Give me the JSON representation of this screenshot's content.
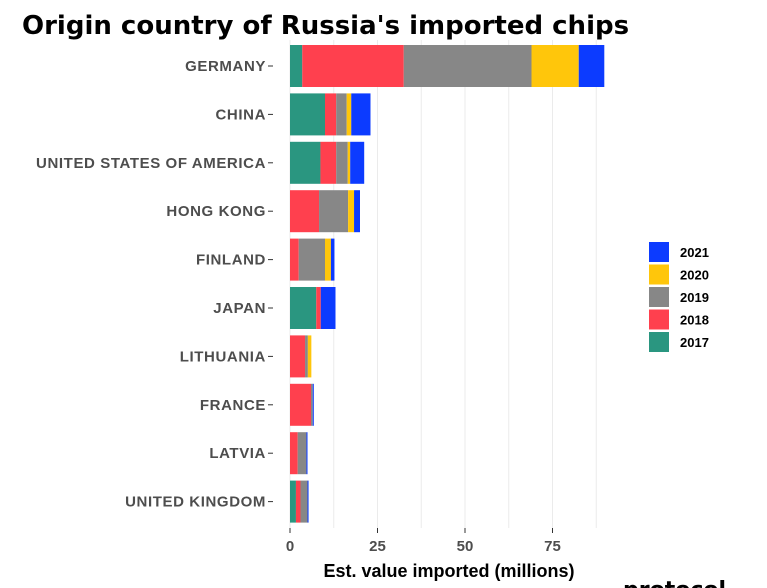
{
  "logo": {
    "text": "protocol"
  },
  "chart_data": {
    "type": "bar",
    "orientation": "horizontal",
    "stacked": true,
    "title": "Origin country of Russia's imported chips",
    "xlabel": "Est. value imported (millions)",
    "ylabel": "",
    "xlim": [
      0,
      93
    ],
    "xticks": [
      0,
      25,
      50,
      75
    ],
    "grid": true,
    "legend_position": "right",
    "categories": [
      "GERMANY",
      "CHINA",
      "UNITED STATES OF AMERICA",
      "HONG KONG",
      "FINLAND",
      "JAPAN",
      "LITHUANIA",
      "FRANCE",
      "LATVIA",
      "UNITED KINGDOM"
    ],
    "series": [
      {
        "name": "2017",
        "color": "#2a9680",
        "values": [
          3.5,
          10.0,
          8.7,
          0.0,
          0.0,
          7.5,
          0.0,
          0.0,
          0.0,
          1.7
        ]
      },
      {
        "name": "2018",
        "color": "#ff404e",
        "values": [
          29.0,
          3.2,
          4.5,
          8.3,
          2.5,
          1.3,
          4.3,
          6.0,
          2.2,
          1.3
        ]
      },
      {
        "name": "2019",
        "color": "#878787",
        "values": [
          36.5,
          3.0,
          3.3,
          8.3,
          7.5,
          0.0,
          0.8,
          0.5,
          2.5,
          2.0
        ]
      },
      {
        "name": "2020",
        "color": "#ffc60b",
        "values": [
          13.5,
          1.3,
          0.7,
          1.7,
          1.7,
          0.0,
          1.0,
          0.0,
          0.0,
          0.0
        ]
      },
      {
        "name": "2021",
        "color": "#0c3bff",
        "values": [
          7.3,
          5.5,
          4.0,
          1.7,
          1.0,
          4.2,
          0.0,
          0.3,
          0.3,
          0.3
        ]
      }
    ]
  }
}
